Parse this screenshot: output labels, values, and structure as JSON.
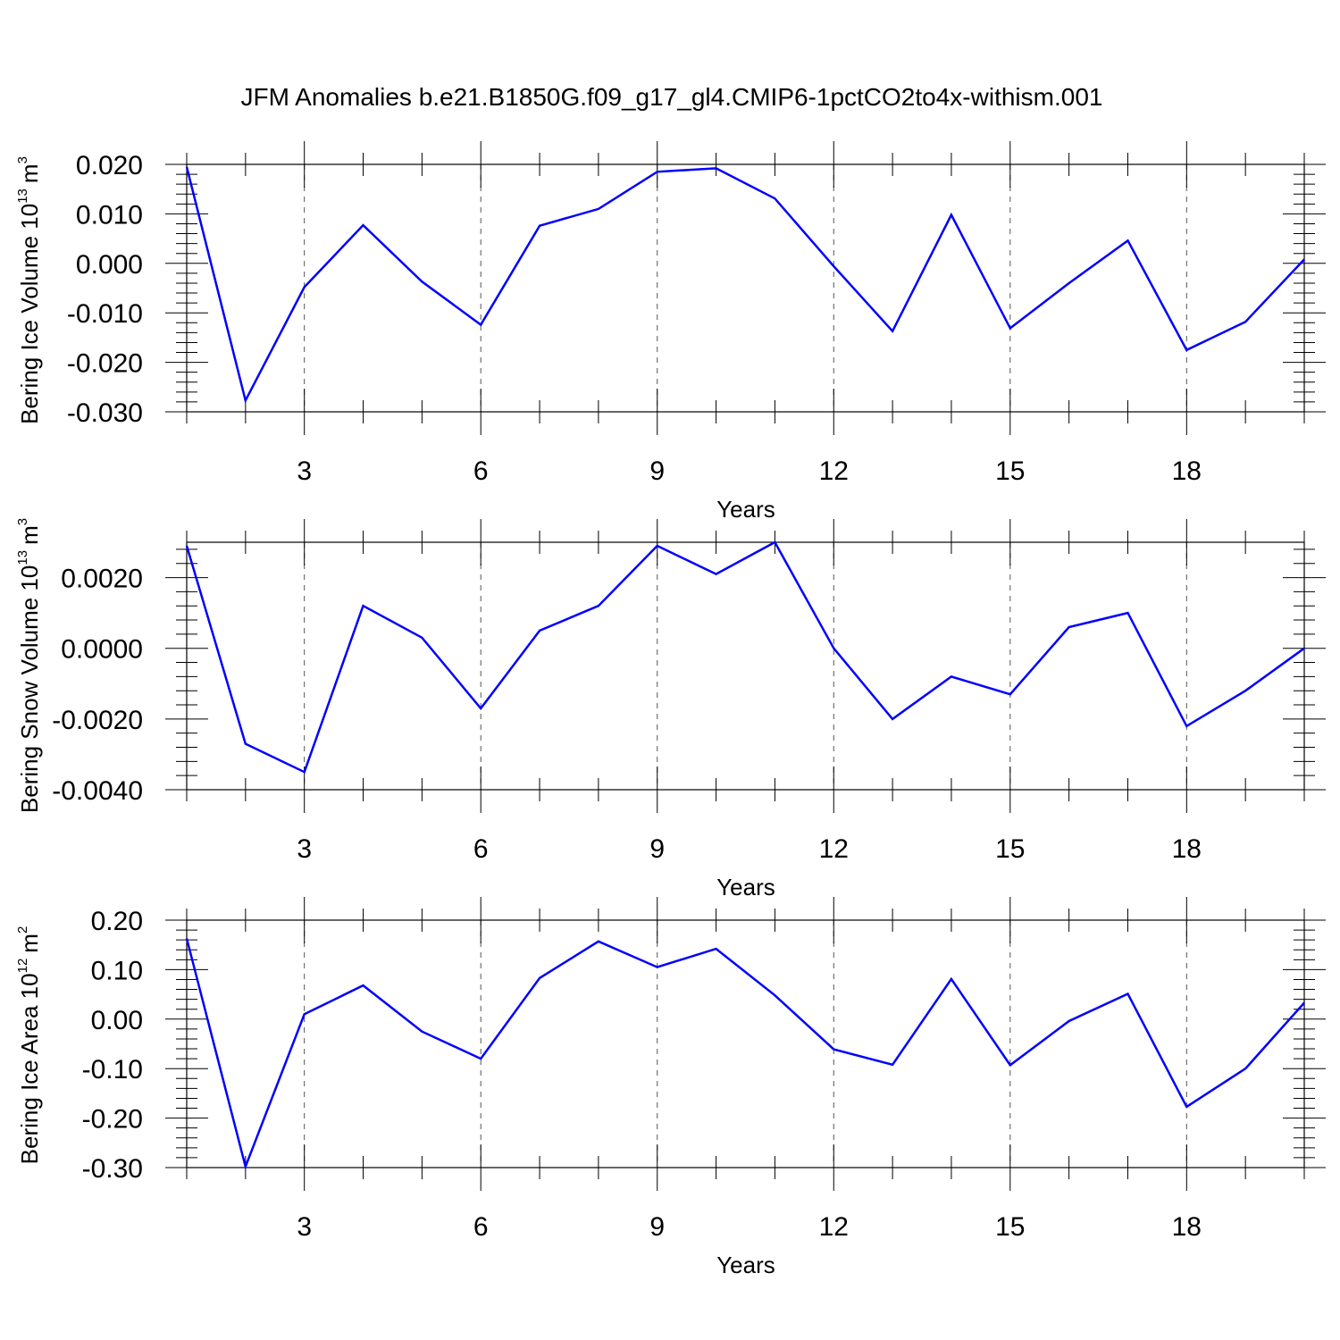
{
  "title": "JFM Anomalies b.e21.B1850G.f09_g17_gl4.CMIP6-1pctCO2to4x-withism.001",
  "chart_data": [
    {
      "type": "line",
      "title": "JFM Anomalies b.e21.B1850G.f09_g17_gl4.CMIP6-1pctCO2to4x-withism.001",
      "xlabel": "Years",
      "ylabel": "Bering Ice Volume 10",
      "ylabel_sup": "13",
      "ylabel_unit": "m",
      "ylabel_unit_sup": "3",
      "xlim": [
        1,
        20
      ],
      "ylim": [
        -0.03,
        0.02
      ],
      "yticks": [
        -0.03,
        -0.02,
        -0.01,
        0.0,
        0.01,
        0.02
      ],
      "ytick_labels": [
        "-0.030",
        "-0.020",
        "-0.010",
        "0.000",
        "0.010",
        "0.020"
      ],
      "xticks": [
        3,
        6,
        9,
        12,
        15,
        18
      ],
      "xtick_labels": [
        "3",
        "6",
        "9",
        "12",
        "15",
        "18"
      ],
      "grid": "vertical dashed",
      "color": "#0000ff",
      "x": [
        1,
        2,
        3,
        4,
        5,
        6,
        7,
        8,
        9,
        10,
        11,
        12,
        13,
        14,
        15,
        16,
        17,
        18,
        19,
        20
      ],
      "values": [
        0.0195,
        -0.0277,
        -0.0048,
        0.0077,
        -0.0037,
        -0.0124,
        0.0076,
        0.011,
        0.0185,
        0.0192,
        0.0131,
        -0.0006,
        -0.0137,
        0.0098,
        -0.0131,
        -0.004,
        0.0046,
        -0.0175,
        -0.0118,
        0.0008
      ]
    },
    {
      "type": "line",
      "xlabel": "Years",
      "ylabel": "Bering Snow Volume 10",
      "ylabel_sup": "13",
      "ylabel_unit": "m",
      "ylabel_unit_sup": "3",
      "xlim": [
        1,
        20
      ],
      "ylim": [
        -0.004,
        0.003
      ],
      "yticks": [
        -0.004,
        -0.002,
        0.0,
        0.002
      ],
      "ytick_labels": [
        "-0.0040",
        "-0.0020",
        "0.0000",
        "0.0020"
      ],
      "xticks": [
        3,
        6,
        9,
        12,
        15,
        18
      ],
      "xtick_labels": [
        "3",
        "6",
        "9",
        "12",
        "15",
        "18"
      ],
      "grid": "vertical dashed",
      "color": "#0000ff",
      "x": [
        1,
        2,
        3,
        4,
        5,
        6,
        7,
        8,
        9,
        10,
        11,
        12,
        13,
        14,
        15,
        16,
        17,
        18,
        19,
        20
      ],
      "values": [
        0.0029,
        -0.0027,
        -0.0035,
        0.0012,
        0.0003,
        -0.0017,
        0.0005,
        0.0012,
        0.0029,
        0.0021,
        0.003,
        0.0,
        -0.002,
        -0.0008,
        -0.0013,
        0.0006,
        0.001,
        -0.0022,
        -0.0012,
        0.0
      ]
    },
    {
      "type": "line",
      "xlabel": "Years",
      "ylabel": "Bering Ice Area 10",
      "ylabel_sup": "12",
      "ylabel_unit": "m",
      "ylabel_unit_sup": "2",
      "xlim": [
        1,
        20
      ],
      "ylim": [
        -0.3,
        0.2
      ],
      "yticks": [
        -0.3,
        -0.2,
        -0.1,
        0.0,
        0.1,
        0.2
      ],
      "ytick_labels": [
        "-0.30",
        "-0.20",
        "-0.10",
        "0.00",
        "0.10",
        "0.20"
      ],
      "xticks": [
        3,
        6,
        9,
        12,
        15,
        18
      ],
      "xtick_labels": [
        "3",
        "6",
        "9",
        "12",
        "15",
        "18"
      ],
      "grid": "vertical dashed",
      "color": "#0000ff",
      "x": [
        1,
        2,
        3,
        4,
        5,
        6,
        7,
        8,
        9,
        10,
        11,
        12,
        13,
        14,
        15,
        16,
        17,
        18,
        19,
        20
      ],
      "values": [
        0.163,
        -0.298,
        0.01,
        0.068,
        -0.025,
        -0.08,
        0.083,
        0.157,
        0.105,
        0.142,
        0.048,
        -0.061,
        -0.092,
        0.081,
        -0.093,
        -0.004,
        0.051,
        -0.177,
        -0.1,
        0.033
      ]
    }
  ]
}
